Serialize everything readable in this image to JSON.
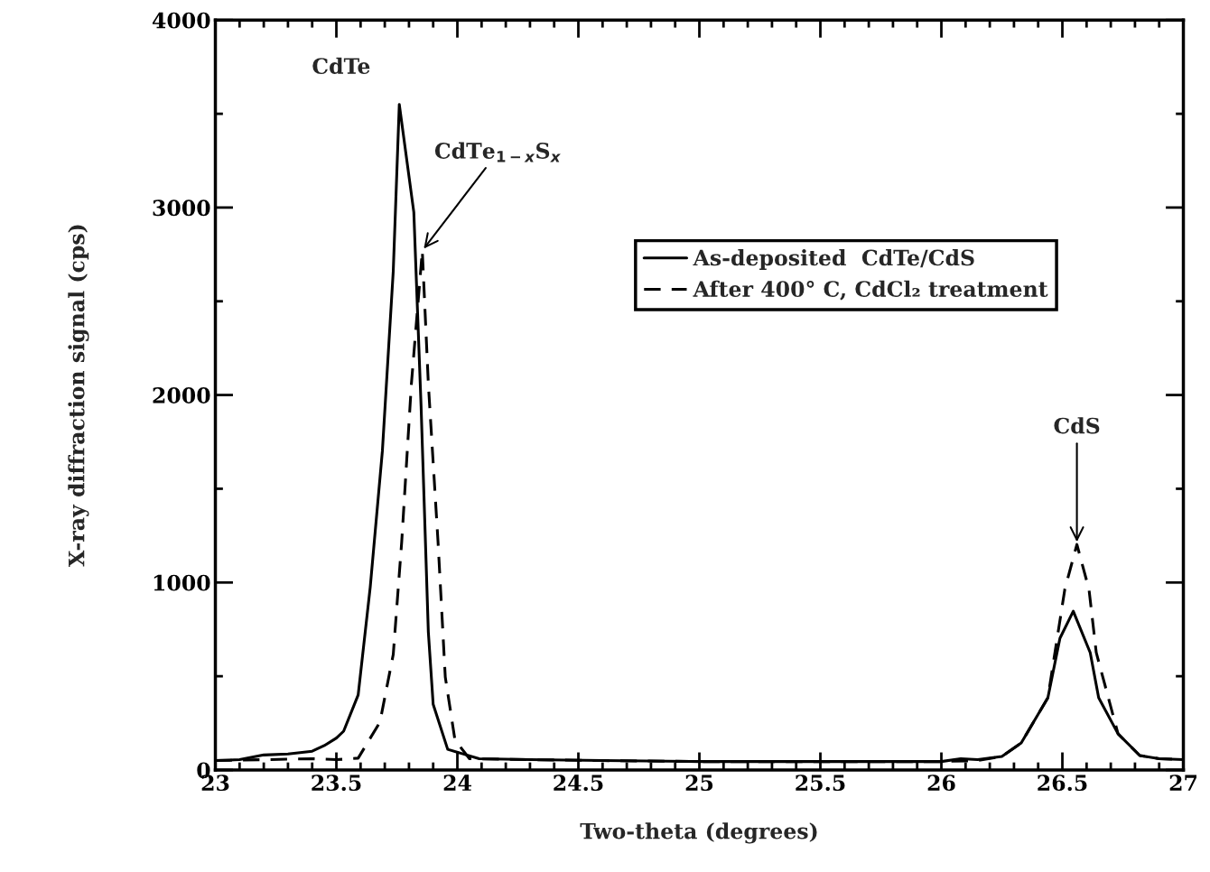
{
  "chart_data": {
    "type": "line",
    "xlabel": "Two-theta (degrees)",
    "ylabel": "X-ray diffraction signal (cps)",
    "xlim": [
      23,
      27
    ],
    "xticks": [
      23,
      23.5,
      24,
      24.5,
      25,
      25.5,
      26,
      26.5,
      27
    ],
    "ylim": [
      0,
      4000
    ],
    "yticks": [
      0,
      1000,
      2000,
      3000,
      4000
    ],
    "grid": false,
    "legend": "top right",
    "annotations": [
      "CdTe",
      {
        "text": "CdTe$_{1−x}$S$_{x}$",
        "x": 23.855,
        "y": 2770
      },
      {
        "text": "CdS",
        "x": 26.56,
        "y": 1203
      }
    ],
    "series": [
      {
        "name": "As-deposited  CdTe/CdS",
        "color": "#000000",
        "line_style": "solid",
        "x": [
          23,
          23.1,
          23.2,
          23.3,
          23.4,
          23.45,
          23.5,
          23.53,
          23.59,
          23.64,
          23.69,
          23.735,
          23.76,
          23.82,
          23.85,
          23.88,
          23.9,
          23.96,
          24.09,
          24.3,
          24.6,
          25,
          25.5,
          26,
          26.08,
          26.15,
          26.25,
          26.33,
          26.44,
          26.49,
          26.545,
          26.615,
          26.65,
          26.73,
          26.82,
          26.9,
          27
        ],
        "values": [
          50,
          55,
          80,
          85,
          100,
          130,
          170,
          207,
          400,
          977,
          1700,
          2660,
          3550,
          2975,
          1940,
          736,
          350,
          110,
          60,
          55,
          50,
          45,
          45,
          45,
          60,
          55,
          72,
          144,
          385,
          703,
          847,
          626,
          385,
          193,
          77,
          60,
          55
        ]
      },
      {
        "name": "After 400° C, CdCl₂ treatment",
        "color": "#000000",
        "line_style": "dashed",
        "x": [
          23,
          23.2,
          23.4,
          23.5,
          23.59,
          23.68,
          23.735,
          23.77,
          23.81,
          23.855,
          23.88,
          23.92,
          23.95,
          23.99,
          24.05,
          24.3,
          24.6,
          25,
          25.5,
          26,
          26.15,
          26.25,
          26.33,
          26.44,
          26.51,
          26.56,
          26.61,
          26.64,
          26.73,
          26.82,
          26.9,
          27
        ],
        "values": [
          50,
          55,
          60,
          55,
          63,
          255,
          616,
          1218,
          2060,
          2770,
          2060,
          1218,
          496,
          160,
          60,
          55,
          50,
          45,
          45,
          45,
          50,
          72,
          144,
          385,
          963,
          1203,
          963,
          626,
          193,
          77,
          60,
          55
        ]
      }
    ]
  }
}
